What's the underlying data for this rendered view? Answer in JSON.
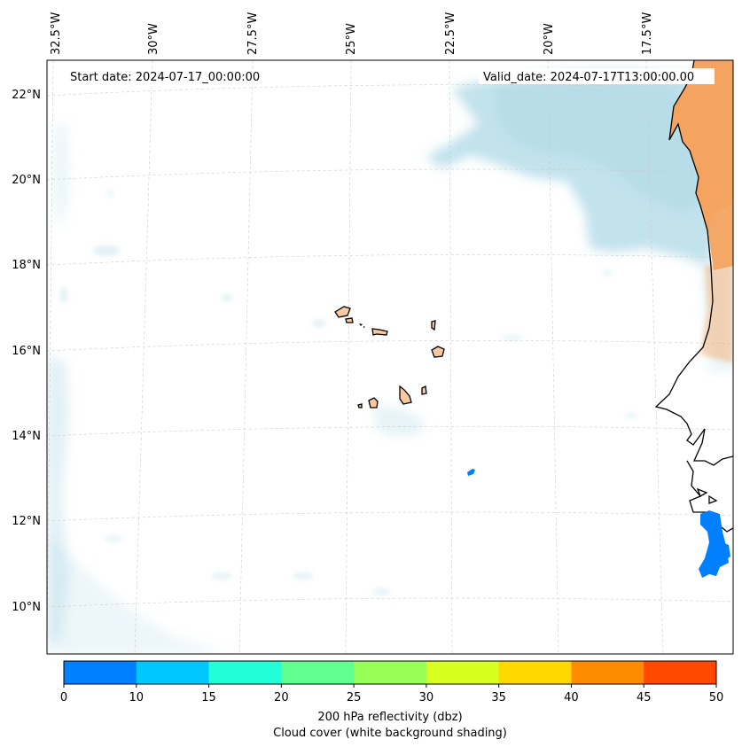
{
  "map": {
    "start_date": "Start date: 2024-07-17_00:00:00",
    "valid_date": "Valid_date: 2024-07-17T13:00:00.00",
    "lon_labels": [
      "32.5°W",
      "30°W",
      "27.5°W",
      "25°W",
      "22.5°W",
      "20°W",
      "17.5°W"
    ],
    "lat_labels": [
      "22°N",
      "20°N",
      "18°N",
      "16°N",
      "14°N",
      "12°N",
      "10°N"
    ],
    "colors": {
      "cloud": "#add8e6",
      "land_reflectivity": "#f4a460",
      "island_fill": "#f8c8a0",
      "coast": "#000000",
      "grid": "#c8c8c8"
    }
  },
  "colorbar": {
    "ticks": [
      "0",
      "10",
      "15",
      "20",
      "25",
      "30",
      "35",
      "40",
      "45",
      "50"
    ],
    "colors": [
      "#0080ff",
      "#00c8ff",
      "#20ffd8",
      "#60ff90",
      "#98ff58",
      "#d8ff20",
      "#ffd800",
      "#ff8c00",
      "#ff4800"
    ],
    "label_line1": "200 hPa reflectivity (dbz)",
    "label_line2": "Cloud cover (white background shading)"
  }
}
